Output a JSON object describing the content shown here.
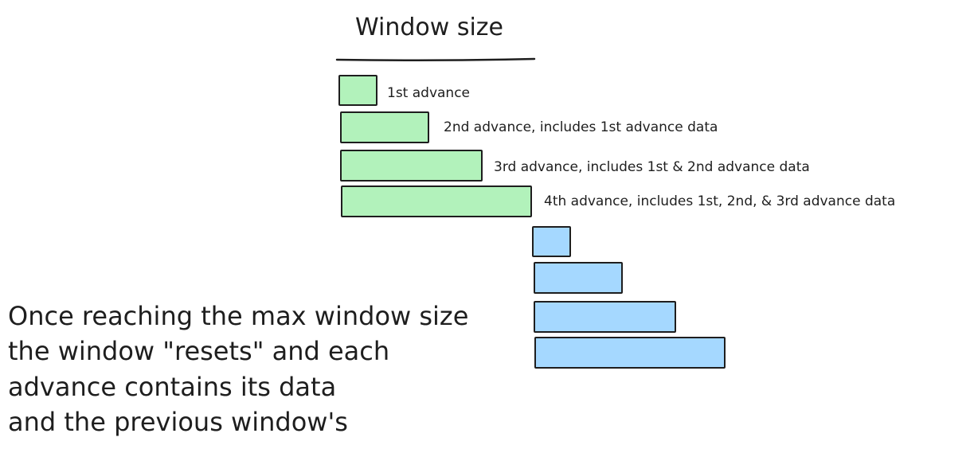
{
  "title": "Window size",
  "colors": {
    "stroke": "#1e1e1e",
    "green_fill": "#b2f2bb",
    "blue_fill": "#a5d8ff",
    "background": "#ffffff"
  },
  "first_window": {
    "advances": [
      {
        "label": "1st advance"
      },
      {
        "label": "2nd advance, includes 1st advance data"
      },
      {
        "label": "3rd advance, includes 1st & 2nd advance data"
      },
      {
        "label": "4th advance, includes 1st, 2nd, & 3rd advance data"
      }
    ]
  },
  "note": {
    "lines": [
      "Once reaching the max window size",
      "the window \"resets\" and each",
      "advance contains its data",
      "and the previous window's"
    ]
  }
}
